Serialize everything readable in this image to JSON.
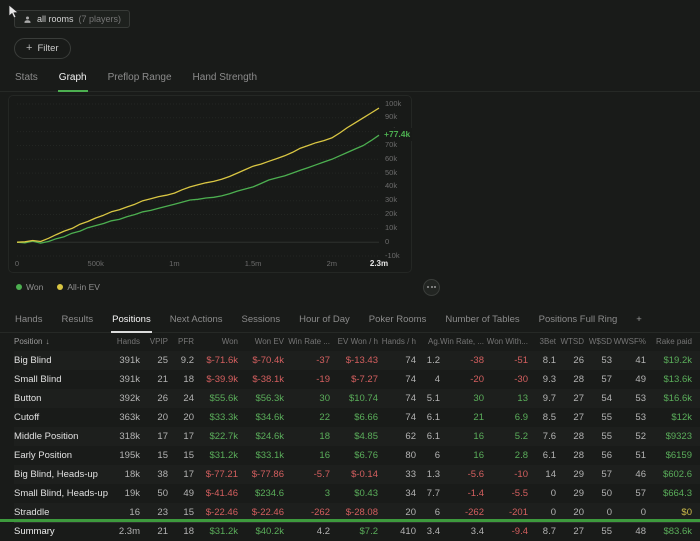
{
  "toolbar": {
    "rooms_label": "all rooms",
    "players_label": "(7 players)",
    "plus": "+",
    "filter_label": "Filter"
  },
  "tabs_primary": [
    {
      "label": "Stats"
    },
    {
      "label": "Graph",
      "active": true
    },
    {
      "label": "Preflop Range"
    },
    {
      "label": "Hand Strength"
    }
  ],
  "chart": {
    "end_label": "+77.4k",
    "legend": [
      {
        "label": "Won",
        "color": "#4caf50"
      },
      {
        "label": "All-in EV",
        "color": "#d9c643"
      }
    ]
  },
  "chart_data": {
    "type": "line",
    "xlabel": "hands",
    "ylabel": "winnings ($)",
    "xlim": [
      0,
      2.3
    ],
    "ylim": [
      -10,
      100
    ],
    "grid": true,
    "x_unit": "millions of hands",
    "y_unit": "thousands of $",
    "x": [
      0,
      0.05,
      0.1,
      0.15,
      0.2,
      0.25,
      0.3,
      0.35,
      0.4,
      0.45,
      0.5,
      0.55,
      0.6,
      0.65,
      0.7,
      0.75,
      0.8,
      0.85,
      0.9,
      0.95,
      1,
      1.05,
      1.1,
      1.15,
      1.2,
      1.25,
      1.3,
      1.35,
      1.4,
      1.45,
      1.5,
      1.55,
      1.6,
      1.65,
      1.7,
      1.75,
      1.8,
      1.85,
      1.9,
      1.95,
      2,
      2.05,
      2.1,
      2.15,
      2.2,
      2.25,
      2.3
    ],
    "series": [
      {
        "name": "Won",
        "color": "#4caf50",
        "values": [
          0,
          -0.5,
          0.8,
          -0.7,
          0.5,
          2.5,
          4,
          6.5,
          8,
          10.5,
          12,
          13.5,
          15.5,
          16.5,
          18.5,
          20,
          22,
          23,
          24.5,
          26,
          27.5,
          29,
          30.5,
          31,
          32,
          32.5,
          33.5,
          35,
          37,
          38.5,
          40,
          42.5,
          45,
          46.5,
          48,
          50,
          52,
          54,
          56,
          58,
          60,
          62.5,
          65,
          67.5,
          70,
          73.5,
          77.4
        ]
      },
      {
        "name": "All-in EV",
        "color": "#d9c643",
        "values": [
          0,
          0.3,
          1.2,
          0.5,
          2.8,
          5.5,
          8,
          10,
          13,
          15,
          17.5,
          19.5,
          22,
          23.5,
          25.5,
          27.5,
          30,
          31.5,
          33,
          34,
          35.5,
          38,
          40,
          41.5,
          43,
          44,
          45.5,
          47.5,
          50,
          52.5,
          55,
          56.5,
          58.5,
          60.5,
          62.5,
          65,
          68,
          70,
          72,
          73.5,
          75.5,
          79,
          83,
          86.5,
          90,
          93.5,
          97
        ]
      }
    ],
    "y_ticks": [
      {
        "v": 100,
        "label": "100k"
      },
      {
        "v": 90,
        "label": "90k"
      },
      {
        "v": 80,
        "label": "80k"
      },
      {
        "v": 70,
        "label": "70k"
      },
      {
        "v": 60,
        "label": "60k"
      },
      {
        "v": 50,
        "label": "50k"
      },
      {
        "v": 40,
        "label": "40k"
      },
      {
        "v": 30,
        "label": "30k"
      },
      {
        "v": 20,
        "label": "20k"
      },
      {
        "v": 10,
        "label": "10k"
      },
      {
        "v": 0,
        "label": "0"
      },
      {
        "v": -10,
        "label": "-10k"
      }
    ],
    "x_ticks": [
      {
        "v": 0,
        "label": "0"
      },
      {
        "v": 0.5,
        "label": "500k"
      },
      {
        "v": 1,
        "label": "1m"
      },
      {
        "v": 1.5,
        "label": "1.5m"
      },
      {
        "v": 2,
        "label": "2m"
      },
      {
        "v": 2.3,
        "label": "2.3m",
        "strong": true
      }
    ],
    "end_annotation": {
      "series": "Won",
      "v": 77.4,
      "label": "+77.4k"
    },
    "legend_position": "bottom-left"
  },
  "tabs_secondary": [
    "Hands",
    "Results",
    "Positions",
    "Next Actions",
    "Sessions",
    "Hour of Day",
    "Poker Rooms",
    "Number of Tables",
    "Positions Full Ring"
  ],
  "tabs_secondary_active": "Positions",
  "add_tab_label": "+",
  "table": {
    "sort_arrow": "↓",
    "columns": [
      "Position",
      "Hands",
      "VPIP",
      "PFR",
      "Won",
      "Won EV",
      "Win Rate ...",
      "EV Won / h",
      "Hands / h",
      "Ag.",
      "Win Rate, ...",
      "Won With...",
      "3Bet",
      "WTSD",
      "W$SD",
      "WWSF%",
      "Rake paid"
    ],
    "rows": [
      {
        "cells": [
          [
            "Big Blind",
            "name"
          ],
          [
            "391k",
            ""
          ],
          [
            "25",
            ""
          ],
          [
            "9.2",
            ""
          ],
          [
            "$-71.6k",
            "neg"
          ],
          [
            "$-70.4k",
            "neg"
          ],
          [
            "-37",
            "neg"
          ],
          [
            "$-13.43",
            "neg"
          ],
          [
            "74",
            ""
          ],
          [
            "1.2",
            ""
          ],
          [
            "-38",
            "neg"
          ],
          [
            "-51",
            "neg"
          ],
          [
            "8.1",
            ""
          ],
          [
            "26",
            ""
          ],
          [
            "53",
            ""
          ],
          [
            "41",
            ""
          ],
          [
            "$19.2k",
            "pos"
          ]
        ]
      },
      {
        "cells": [
          [
            "Small Blind",
            "name"
          ],
          [
            "391k",
            ""
          ],
          [
            "21",
            ""
          ],
          [
            "18",
            ""
          ],
          [
            "$-39.9k",
            "neg"
          ],
          [
            "$-38.1k",
            "neg"
          ],
          [
            "-19",
            "neg"
          ],
          [
            "$-7.27",
            "neg"
          ],
          [
            "74",
            ""
          ],
          [
            "4",
            ""
          ],
          [
            "-20",
            "neg"
          ],
          [
            "-30",
            "neg"
          ],
          [
            "9.3",
            ""
          ],
          [
            "28",
            ""
          ],
          [
            "57",
            ""
          ],
          [
            "49",
            ""
          ],
          [
            "$13.6k",
            "pos"
          ]
        ]
      },
      {
        "cells": [
          [
            "Button",
            "name"
          ],
          [
            "392k",
            ""
          ],
          [
            "26",
            ""
          ],
          [
            "24",
            ""
          ],
          [
            "$55.6k",
            "pos"
          ],
          [
            "$56.3k",
            "pos"
          ],
          [
            "30",
            "pos"
          ],
          [
            "$10.74",
            "pos"
          ],
          [
            "74",
            ""
          ],
          [
            "5.1",
            ""
          ],
          [
            "30",
            "pos"
          ],
          [
            "13",
            "pos"
          ],
          [
            "9.7",
            ""
          ],
          [
            "27",
            ""
          ],
          [
            "54",
            ""
          ],
          [
            "53",
            ""
          ],
          [
            "$16.6k",
            "pos"
          ]
        ]
      },
      {
        "cells": [
          [
            "Cutoff",
            "name"
          ],
          [
            "363k",
            ""
          ],
          [
            "20",
            ""
          ],
          [
            "20",
            ""
          ],
          [
            "$33.3k",
            "pos"
          ],
          [
            "$34.6k",
            "pos"
          ],
          [
            "22",
            "pos"
          ],
          [
            "$6.66",
            "pos"
          ],
          [
            "74",
            ""
          ],
          [
            "6.1",
            ""
          ],
          [
            "21",
            "pos"
          ],
          [
            "6.9",
            "pos"
          ],
          [
            "8.5",
            ""
          ],
          [
            "27",
            ""
          ],
          [
            "55",
            ""
          ],
          [
            "53",
            ""
          ],
          [
            "$12k",
            "pos"
          ]
        ]
      },
      {
        "cells": [
          [
            "Middle Position",
            "name"
          ],
          [
            "318k",
            ""
          ],
          [
            "17",
            ""
          ],
          [
            "17",
            ""
          ],
          [
            "$22.7k",
            "pos"
          ],
          [
            "$24.6k",
            "pos"
          ],
          [
            "18",
            "pos"
          ],
          [
            "$4.85",
            "pos"
          ],
          [
            "62",
            ""
          ],
          [
            "6.1",
            ""
          ],
          [
            "16",
            "pos"
          ],
          [
            "5.2",
            "pos"
          ],
          [
            "7.6",
            ""
          ],
          [
            "28",
            ""
          ],
          [
            "55",
            ""
          ],
          [
            "52",
            ""
          ],
          [
            "$9323",
            "pos"
          ]
        ]
      },
      {
        "cells": [
          [
            "Early Position",
            "name"
          ],
          [
            "195k",
            ""
          ],
          [
            "15",
            ""
          ],
          [
            "15",
            ""
          ],
          [
            "$31.2k",
            "pos"
          ],
          [
            "$33.1k",
            "pos"
          ],
          [
            "16",
            "pos"
          ],
          [
            "$6.76",
            "pos"
          ],
          [
            "80",
            ""
          ],
          [
            "6",
            ""
          ],
          [
            "16",
            "pos"
          ],
          [
            "2.8",
            "pos"
          ],
          [
            "6.1",
            ""
          ],
          [
            "28",
            ""
          ],
          [
            "56",
            ""
          ],
          [
            "51",
            ""
          ],
          [
            "$6159",
            "pos"
          ]
        ]
      },
      {
        "cells": [
          [
            "Big Blind, Heads-up",
            "name"
          ],
          [
            "18k",
            ""
          ],
          [
            "38",
            ""
          ],
          [
            "17",
            ""
          ],
          [
            "$-77.21",
            "neg"
          ],
          [
            "$-77.86",
            "neg"
          ],
          [
            "-5.7",
            "neg"
          ],
          [
            "$-0.14",
            "neg"
          ],
          [
            "33",
            ""
          ],
          [
            "1.3",
            ""
          ],
          [
            "-5.6",
            "neg"
          ],
          [
            "-10",
            "neg"
          ],
          [
            "14",
            ""
          ],
          [
            "29",
            ""
          ],
          [
            "57",
            ""
          ],
          [
            "46",
            ""
          ],
          [
            "$602.6",
            "pos"
          ]
        ]
      },
      {
        "cells": [
          [
            "Small Blind, Heads-up",
            "name"
          ],
          [
            "19k",
            ""
          ],
          [
            "50",
            ""
          ],
          [
            "49",
            ""
          ],
          [
            "$-41.46",
            "neg"
          ],
          [
            "$234.6",
            "pos"
          ],
          [
            "3",
            "pos"
          ],
          [
            "$0.43",
            "pos"
          ],
          [
            "34",
            ""
          ],
          [
            "7.7",
            ""
          ],
          [
            "-1.4",
            "neg"
          ],
          [
            "-5.5",
            "neg"
          ],
          [
            "0",
            ""
          ],
          [
            "29",
            ""
          ],
          [
            "50",
            ""
          ],
          [
            "57",
            ""
          ],
          [
            "$664.3",
            "pos"
          ]
        ]
      },
      {
        "cells": [
          [
            "Straddle",
            "name"
          ],
          [
            "16",
            ""
          ],
          [
            "23",
            ""
          ],
          [
            "15",
            ""
          ],
          [
            "$-22.46",
            "neg"
          ],
          [
            "$-22.46",
            "neg"
          ],
          [
            "-262",
            "neg"
          ],
          [
            "$-28.08",
            "neg"
          ],
          [
            "20",
            ""
          ],
          [
            "6",
            ""
          ],
          [
            "-262",
            "neg"
          ],
          [
            "-201",
            "neg"
          ],
          [
            "0",
            ""
          ],
          [
            "20",
            ""
          ],
          [
            "0",
            ""
          ],
          [
            "0",
            ""
          ],
          [
            "$0",
            "yellow"
          ]
        ]
      },
      {
        "summary": true,
        "cells": [
          [
            "Summary",
            "name"
          ],
          [
            "2.3m",
            ""
          ],
          [
            "21",
            ""
          ],
          [
            "18",
            ""
          ],
          [
            "$31.2k",
            "pos"
          ],
          [
            "$40.2k",
            "pos"
          ],
          [
            "4.2",
            ""
          ],
          [
            "$7.2",
            "pos"
          ],
          [
            "410",
            ""
          ],
          [
            "3.4",
            ""
          ],
          [
            "3.4",
            ""
          ],
          [
            "-9.4",
            "neg"
          ],
          [
            "8.7",
            ""
          ],
          [
            "27",
            ""
          ],
          [
            "55",
            ""
          ],
          [
            "48",
            ""
          ],
          [
            "$83.6k",
            "pos"
          ]
        ]
      }
    ]
  }
}
